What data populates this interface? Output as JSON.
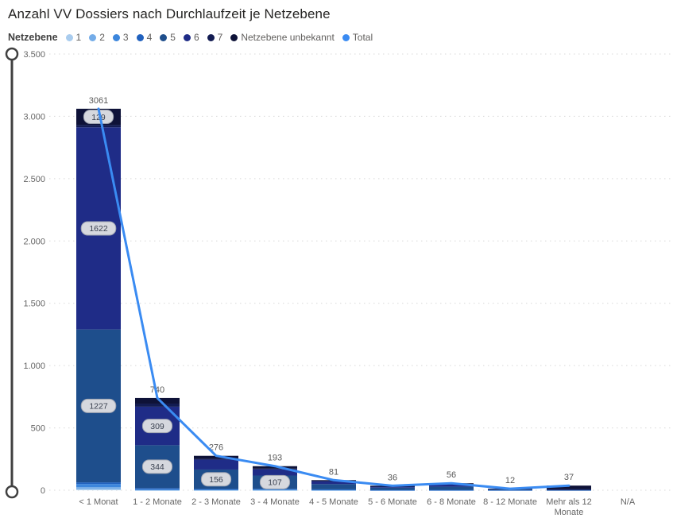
{
  "title": "Anzahl VV Dossiers nach Durchlaufzeit je Netzebene",
  "legend": {
    "label": "Netzebene",
    "items": [
      {
        "name": "1",
        "color": "#A9CCEE"
      },
      {
        "name": "2",
        "color": "#74ACE8"
      },
      {
        "name": "3",
        "color": "#3C86DC"
      },
      {
        "name": "4",
        "color": "#2061BE"
      },
      {
        "name": "5",
        "color": "#1E4E8C"
      },
      {
        "name": "6",
        "color": "#1F2C87"
      },
      {
        "name": "7",
        "color": "#131C52"
      },
      {
        "name": "Netzebene unbekannt",
        "color": "#0E1238"
      },
      {
        "name": "Total",
        "color": "#3A8BF2"
      }
    ]
  },
  "chart_data": {
    "type": "bar",
    "subtype": "stacked-column-with-line",
    "title": "Anzahl VV Dossiers nach Durchlaufzeit je Netzebene",
    "xlabel": "",
    "ylabel": "",
    "ylim": [
      0,
      3500
    ],
    "grid": "horizontal-dotted",
    "legend_position": "top",
    "categories": [
      "< 1 Monat",
      "1 - 2 Monate",
      "2 - 3 Monate",
      "3 - 4 Monate",
      "4 - 5 Monate",
      "5 - 6 Monate",
      "6 - 8 Monate",
      "8 - 12 Monate",
      "Mehr als 12\nMonate",
      "N/A"
    ],
    "y_axis": {
      "max": 3500,
      "tick_step": 500,
      "tick_labels": [
        "0",
        "500",
        "1.000",
        "1.500",
        "2.000",
        "2.500",
        "3.000",
        "3.500"
      ]
    },
    "series": [
      {
        "name": "1",
        "color": "#A9CCEE",
        "values": [
          10,
          1,
          1,
          1,
          1,
          0,
          0,
          0,
          0,
          0
        ]
      },
      {
        "name": "2",
        "color": "#74ACE8",
        "values": [
          15,
          2,
          2,
          2,
          1,
          0,
          0,
          0,
          0,
          0
        ]
      },
      {
        "name": "3",
        "color": "#3C86DC",
        "values": [
          25,
          4,
          3,
          3,
          2,
          1,
          1,
          0,
          1,
          0
        ]
      },
      {
        "name": "4",
        "color": "#2061BE",
        "values": [
          13,
          10,
          4,
          5,
          3,
          2,
          2,
          1,
          1,
          0
        ]
      },
      {
        "name": "5",
        "color": "#1E4E8C",
        "values": [
          1227,
          344,
          156,
          107,
          42,
          18,
          25,
          6,
          2,
          0
        ]
      },
      {
        "name": "6",
        "color": "#1F2C87",
        "values": [
          1622,
          309,
          80,
          50,
          24,
          9,
          17,
          4,
          3,
          0
        ]
      },
      {
        "name": "7",
        "color": "#131C52",
        "values": [
          20,
          25,
          5,
          5,
          3,
          2,
          4,
          1,
          2,
          0
        ]
      },
      {
        "name": "Netzebene unbekannt",
        "color": "#0E1238",
        "values": [
          129,
          45,
          25,
          20,
          5,
          4,
          7,
          0,
          28,
          0
        ]
      }
    ],
    "segment_label_min": 100,
    "segment_labels_visible": [
      1227,
      1622,
      129,
      344,
      309,
      156,
      107
    ],
    "totals": [
      3061,
      740,
      276,
      193,
      81,
      36,
      56,
      12,
      37,
      null
    ],
    "line_series": {
      "name": "Total",
      "color": "#3A8BF2",
      "values": [
        3061,
        740,
        276,
        193,
        81,
        36,
        56,
        12,
        37,
        null
      ]
    }
  }
}
